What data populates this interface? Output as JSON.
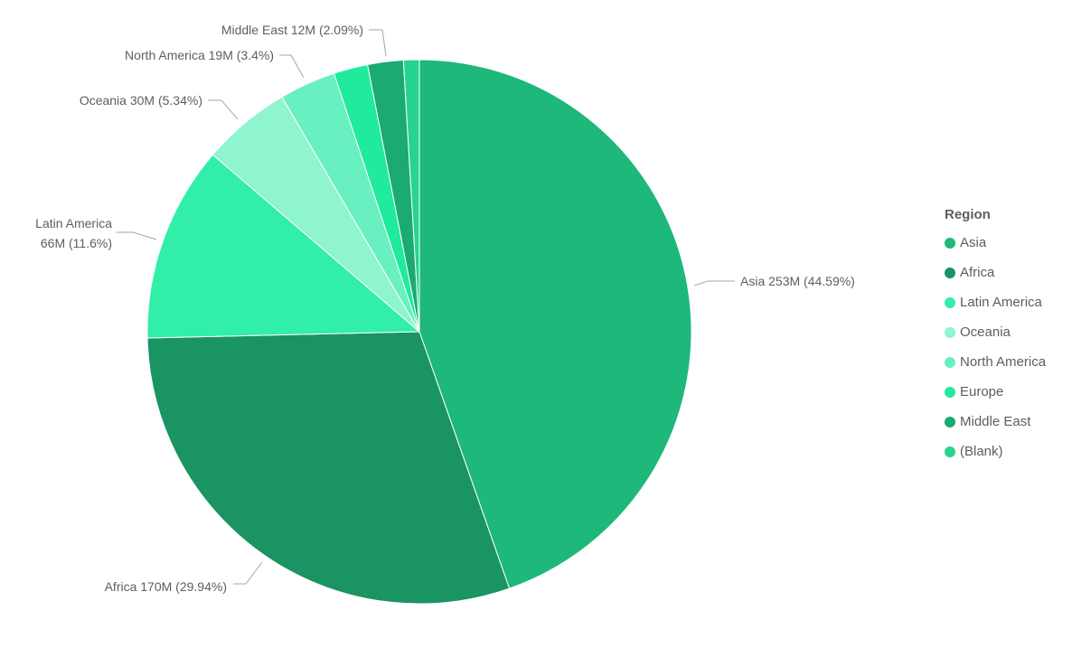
{
  "chart_data": {
    "type": "pie",
    "categories": [
      "Asia",
      "Africa",
      "Latin America",
      "Oceania",
      "North America",
      "Europe",
      "Middle East",
      "(Blank)"
    ],
    "values": [
      253,
      170,
      66,
      30,
      19,
      11.5,
      12,
      5.3
    ],
    "value_unit": "M",
    "percentages": [
      44.59,
      29.94,
      11.6,
      5.34,
      3.4,
      2.03,
      2.09,
      0.93
    ],
    "colors": [
      "#1db87a",
      "#199462",
      "#31eea8",
      "#8ef5cf",
      "#68f0c0",
      "#20ea9c",
      "#1aaa72",
      "#26d48f"
    ],
    "data_labels": {
      "asia": "Asia 253M (44.59%)",
      "africa": "Africa 170M (29.94%)",
      "latin_america_line1": "Latin America",
      "latin_america_line2": "66M (11.6%)",
      "oceania": "Oceania 30M (5.34%)",
      "north_america": "North America 19M (3.4%)",
      "middle_east": "Middle East 12M (2.09%)"
    },
    "legend": {
      "title": "Region",
      "position": "right",
      "items": [
        "Asia",
        "Africa",
        "Latin America",
        "Oceania",
        "North America",
        "Europe",
        "Middle East",
        "(Blank)"
      ]
    }
  }
}
